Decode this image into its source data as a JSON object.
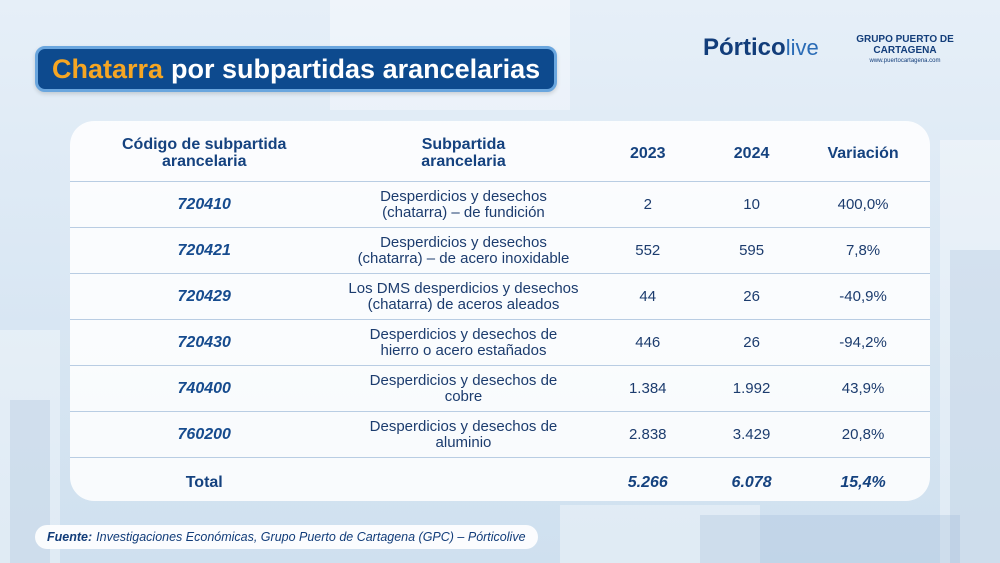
{
  "title": {
    "accent": "Chatarra",
    "rest": "por subpartidas arancelarias"
  },
  "logos": {
    "portico_bold": "Pórtico",
    "portico_light": "live",
    "gpc_name": "GRUPO PUERTO DE CARTAGENA",
    "gpc_url": "www.puertocartagena.com"
  },
  "table": {
    "headers": {
      "code": "Código de subpartida arancelaria",
      "desc": "Subpartida arancelaria",
      "y2023": "2023",
      "y2024": "2024",
      "var": "Variación"
    },
    "rows": [
      {
        "code": "720410",
        "desc": "Desperdicios y desechos (chatarra) – de fundición",
        "v2023": "2",
        "v2024": "10",
        "var": "400,0%"
      },
      {
        "code": "720421",
        "desc": "Desperdicios y desechos (chatarra) – de acero inoxidable",
        "v2023": "552",
        "v2024": "595",
        "var": "7,8%"
      },
      {
        "code": "720429",
        "desc": "Los DMS desperdicios y desechos (chatarra) de aceros aleados",
        "v2023": "44",
        "v2024": "26",
        "var": "-40,9%"
      },
      {
        "code": "720430",
        "desc": "Desperdicios y desechos de hierro o acero estañados",
        "v2023": "446",
        "v2024": "26",
        "var": "-94,2%"
      },
      {
        "code": "740400",
        "desc": "Desperdicios y desechos de cobre",
        "v2023": "1.384",
        "v2024": "1.992",
        "var": "43,9%"
      },
      {
        "code": "760200",
        "desc": "Desperdicios y desechos de aluminio",
        "v2023": "2.838",
        "v2024": "3.429",
        "var": "20,8%"
      }
    ],
    "total": {
      "label": "Total",
      "v2023": "5.266",
      "v2024": "6.078",
      "var": "15,4%"
    }
  },
  "source": {
    "label": "Fuente:",
    "text": "Investigaciones Económicas, Grupo Puerto de Cartagena (GPC) – Pórticolive"
  }
}
